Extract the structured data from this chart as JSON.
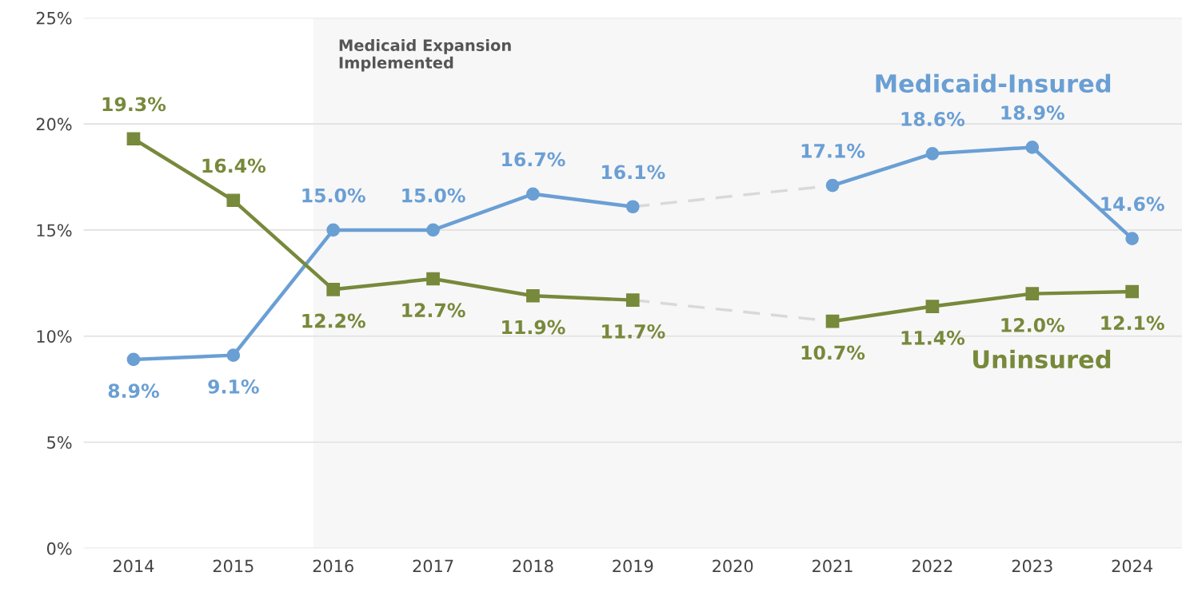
{
  "chart_data": {
    "type": "line",
    "categories": [
      "2014",
      "2015",
      "2016",
      "2017",
      "2018",
      "2019",
      "2020",
      "2021",
      "2022",
      "2023",
      "2024"
    ],
    "series": [
      {
        "name": "Medicaid-Insured",
        "color": "#6a9fd4",
        "marker": "circle",
        "values": [
          8.9,
          9.1,
          15.0,
          15.0,
          16.7,
          16.1,
          null,
          17.1,
          18.6,
          18.9,
          14.6
        ],
        "value_labels": [
          "8.9%",
          "9.1%",
          "15.0%",
          "15.0%",
          "16.7%",
          "16.1%",
          null,
          "17.1%",
          "18.6%",
          "18.9%",
          "14.6%"
        ]
      },
      {
        "name": "Uninsured",
        "color": "#77893b",
        "marker": "square",
        "values": [
          19.3,
          16.4,
          12.2,
          12.7,
          11.9,
          11.7,
          null,
          10.7,
          11.4,
          12.0,
          12.1
        ],
        "value_labels": [
          "19.3%",
          "16.4%",
          "12.2%",
          "12.7%",
          "11.9%",
          "11.7%",
          null,
          "10.7%",
          "11.4%",
          "12.0%",
          "12.1%"
        ]
      },
      {
        "color": "#d9d9d9",
        "line_style": "dashed",
        "marker": "none",
        "values": [
          null,
          null,
          null,
          null,
          null,
          16.1,
          null,
          17.1,
          null,
          null,
          null
        ]
      },
      {
        "color": "#d9d9d9",
        "line_style": "dashed",
        "marker": "none",
        "values": [
          null,
          null,
          null,
          null,
          null,
          11.7,
          null,
          10.7,
          null,
          null,
          null
        ]
      }
    ],
    "ylim": [
      0,
      25
    ],
    "yticks": [
      {
        "value": 0,
        "label": "0%"
      },
      {
        "value": 5,
        "label": "5%"
      },
      {
        "value": 10,
        "label": "10%"
      },
      {
        "value": 15,
        "label": "15%"
      },
      {
        "value": 20,
        "label": "20%"
      },
      {
        "value": 25,
        "label": "25%"
      }
    ],
    "grid": "y",
    "legend": false,
    "bands": [
      {
        "axis": "x",
        "from": "2016",
        "to": "2024",
        "label": "Medicaid Expansion\nImplemented",
        "color": "#f7f7f7"
      }
    ]
  }
}
